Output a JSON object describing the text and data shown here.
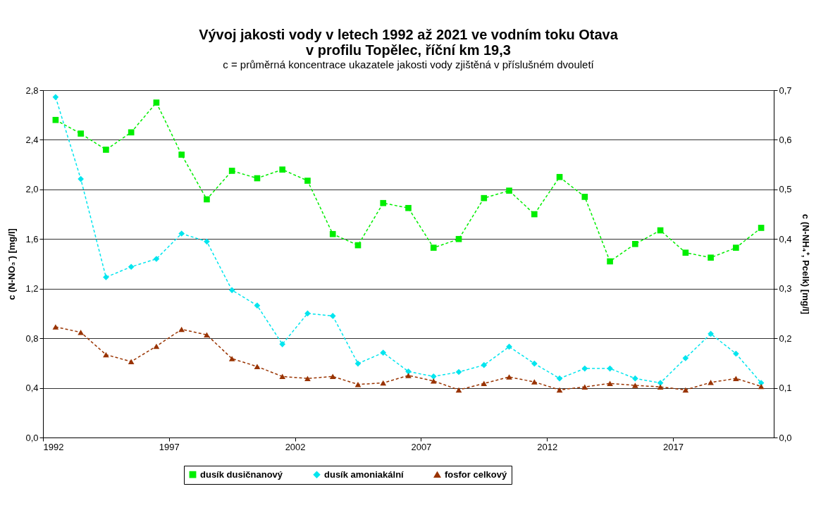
{
  "chart_data": {
    "type": "line",
    "title": [
      "Vývoj jakosti vody v letech 1992 až 2021 ve vodním toku Otava",
      "v profilu Topělec, říční km 19,3"
    ],
    "subtitle": "c = průměrná koncentrace ukazatele jakosti vody zjištěná v příslušném dvouletí",
    "ylabel": "c (N-NO₃⁻) [mg/l]",
    "y2label": "c (N-NH₄⁺, Pcelk) [mg/l]",
    "x": [
      1992.5,
      1993.5,
      1994.5,
      1995.5,
      1996.5,
      1997.5,
      1998.5,
      1999.5,
      2000.5,
      2001.5,
      2002.5,
      2003.5,
      2004.5,
      2005.5,
      2006.5,
      2007.5,
      2008.5,
      2009.5,
      2010.5,
      2011.5,
      2012.5,
      2013.5,
      2014.5,
      2015.5,
      2016.5,
      2017.5,
      2018.5,
      2019.5,
      2020.5
    ],
    "xlim": [
      1992,
      2021
    ],
    "xticks": [
      1992,
      1997,
      2002,
      2007,
      2012,
      2017
    ],
    "ylim": [
      0,
      2.8
    ],
    "yticks": [
      {
        "value": 0,
        "label": "0,0"
      },
      {
        "value": 0.4,
        "label": "0,4"
      },
      {
        "value": 0.8,
        "label": "0,8"
      },
      {
        "value": 1.2,
        "label": "1,2"
      },
      {
        "value": 1.6,
        "label": "1,6"
      },
      {
        "value": 2.0,
        "label": "2,0"
      },
      {
        "value": 2.4,
        "label": "2,4"
      },
      {
        "value": 2.8,
        "label": "2,8"
      }
    ],
    "y2lim": [
      0,
      0.7
    ],
    "y2ticks": [
      {
        "value": 0,
        "label": "0,0"
      },
      {
        "value": 0.1,
        "label": "0,1"
      },
      {
        "value": 0.2,
        "label": "0,2"
      },
      {
        "value": 0.3,
        "label": "0,3"
      },
      {
        "value": 0.4,
        "label": "0,4"
      },
      {
        "value": 0.5,
        "label": "0,5"
      },
      {
        "value": 0.6,
        "label": "0,6"
      },
      {
        "value": 0.7,
        "label": "0,7"
      }
    ],
    "grid": "y",
    "legend": "bottom",
    "line_style": "dashed",
    "series": [
      {
        "name": "dusík dusičnanový",
        "color": "#00ee00",
        "marker": "square",
        "values": [
          2.56,
          2.45,
          2.32,
          2.46,
          2.7,
          2.28,
          1.92,
          2.15,
          2.09,
          2.16,
          2.07,
          1.64,
          1.55,
          1.89,
          1.85,
          1.53,
          1.6,
          1.93,
          1.99,
          1.8,
          2.1,
          1.94,
          1.42,
          1.56,
          1.67,
          1.49,
          1.45,
          1.53,
          1.69
        ]
      },
      {
        "name": "dusík amoniakální",
        "color": "#00e5ee",
        "marker": "diamond",
        "axis": "y2",
        "values": [
          0.686,
          0.521,
          0.323,
          0.344,
          0.36,
          0.411,
          0.395,
          0.297,
          0.266,
          0.188,
          0.25,
          0.245,
          0.149,
          0.171,
          0.133,
          0.123,
          0.132,
          0.146,
          0.183,
          0.149,
          0.119,
          0.139,
          0.139,
          0.119,
          0.11,
          0.16,
          0.209,
          0.169,
          0.11
        ]
      },
      {
        "name": "fosfor celkový",
        "color": "#993300",
        "marker": "triangle",
        "axis": "y2",
        "values": [
          0.223,
          0.212,
          0.167,
          0.153,
          0.184,
          0.218,
          0.207,
          0.159,
          0.143,
          0.123,
          0.119,
          0.123,
          0.107,
          0.11,
          0.125,
          0.114,
          0.096,
          0.109,
          0.122,
          0.112,
          0.096,
          0.102,
          0.109,
          0.105,
          0.102,
          0.096,
          0.111,
          0.119,
          0.103
        ]
      }
    ]
  }
}
